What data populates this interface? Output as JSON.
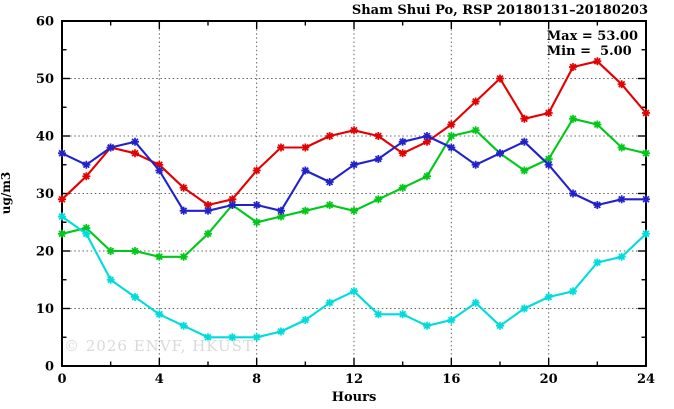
{
  "title": "Sham Shui Po, RSP 20180131–20180203",
  "annotation": {
    "max_label": "Max = 53.00",
    "min_label": "Min =  5.00"
  },
  "watermark": "© 2026 ENVF, HKUST",
  "chart_data": {
    "type": "line",
    "title": "Sham Shui Po, RSP 20180131–20180203",
    "xlabel": "Hours",
    "ylabel": "ug/m3",
    "xlim": [
      0,
      24
    ],
    "ylim": [
      0,
      60
    ],
    "xticks_major": [
      0,
      4,
      8,
      12,
      16,
      20,
      24
    ],
    "xticks_minor_step": 2,
    "yticks_major": [
      0,
      10,
      20,
      30,
      40,
      50,
      60
    ],
    "yticks_minor_step": 5,
    "grid": true,
    "legend_position": "none",
    "x": [
      0,
      1,
      2,
      3,
      4,
      5,
      6,
      7,
      8,
      9,
      10,
      11,
      12,
      13,
      14,
      15,
      16,
      17,
      18,
      19,
      20,
      21,
      22,
      23,
      24
    ],
    "series": [
      {
        "name": "series-red",
        "color": "#e30000",
        "values": [
          29,
          33,
          38,
          37,
          35,
          31,
          28,
          29,
          34,
          38,
          38,
          40,
          41,
          40,
          37,
          39,
          42,
          46,
          50,
          43,
          44,
          52,
          53,
          49,
          44
        ]
      },
      {
        "name": "series-green",
        "color": "#00c818",
        "values": [
          23,
          24,
          20,
          20,
          19,
          19,
          23,
          28,
          25,
          26,
          27,
          28,
          27,
          29,
          31,
          33,
          40,
          41,
          37,
          34,
          36,
          43,
          42,
          38,
          37
        ]
      },
      {
        "name": "series-blue",
        "color": "#2222cc",
        "values": [
          37,
          35,
          38,
          39,
          34,
          27,
          27,
          28,
          28,
          27,
          34,
          32,
          35,
          36,
          39,
          40,
          38,
          35,
          37,
          39,
          35,
          30,
          28,
          29,
          29
        ]
      },
      {
        "name": "series-cyan",
        "color": "#00dcdc",
        "values": [
          26,
          23,
          15,
          12,
          9,
          7,
          5,
          5,
          5,
          6,
          8,
          11,
          13,
          9,
          9,
          7,
          8,
          11,
          7,
          10,
          12,
          13,
          18,
          19,
          23
        ]
      }
    ],
    "stats": {
      "max": 53.0,
      "min": 5.0
    }
  },
  "layout_colors": {
    "grid": "#666666",
    "axis": "#000000",
    "watermark_gray": "#d9d9d9"
  }
}
